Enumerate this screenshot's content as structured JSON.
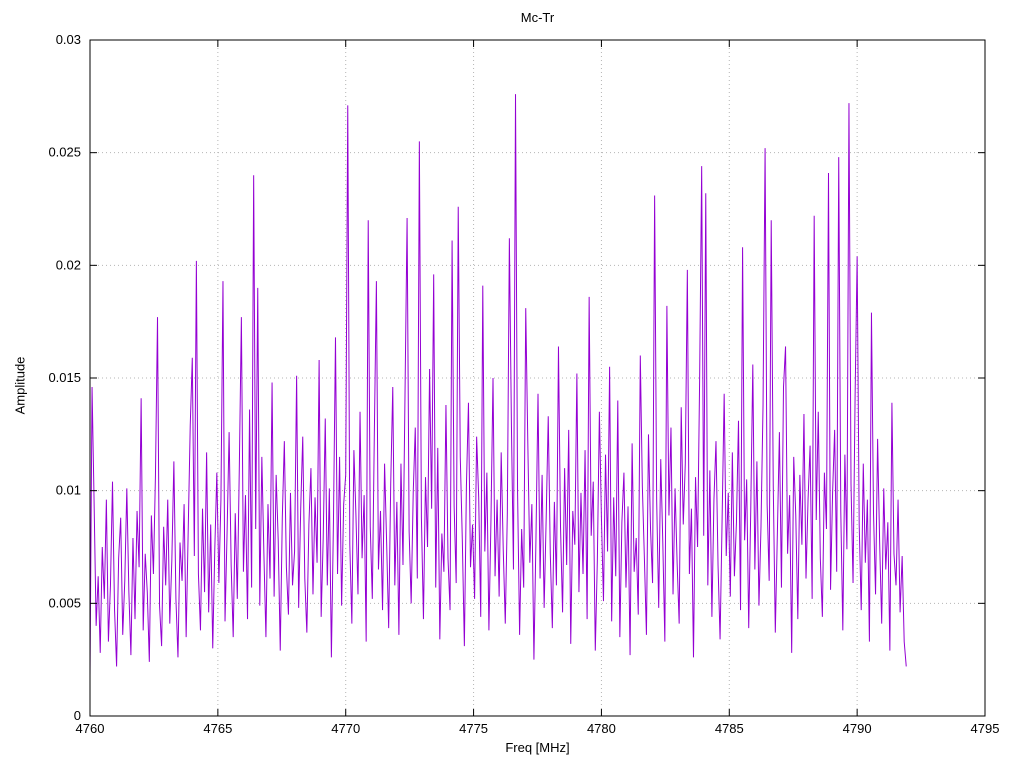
{
  "chart_data": {
    "type": "line",
    "title": "Mc-Tr",
    "xlabel": "Freq [MHz]",
    "ylabel": "Amplitude",
    "xlim": [
      4760,
      4795
    ],
    "ylim": [
      0,
      0.03
    ],
    "grid": true,
    "legend": "none",
    "line_color": "#9400d3",
    "grid_color": "#b5b5b5",
    "border_color": "#000000",
    "x_ticks": [
      4760,
      4765,
      4770,
      4775,
      4780,
      4785,
      4790,
      4795
    ],
    "x_tick_labels": [
      "4760",
      "4765",
      "4770",
      "4775",
      "4780",
      "4785",
      "4790",
      "4795"
    ],
    "y_ticks": [
      0,
      0.005,
      0.01,
      0.015,
      0.02,
      0.025,
      0.03
    ],
    "y_tick_labels": [
      "0",
      "0.005",
      "0.01",
      "0.015",
      "0.02",
      "0.025",
      "0.03"
    ],
    "series_x_start": 4760,
    "series_x_step": 0.08,
    "value_unit": 0.0001,
    "values": [
      18,
      146,
      95,
      40,
      62,
      28,
      75,
      52,
      96,
      33,
      58,
      104,
      47,
      22,
      70,
      88,
      36,
      60,
      101,
      55,
      27,
      79,
      43,
      91,
      66,
      141,
      38,
      72,
      55,
      24,
      89,
      63,
      107,
      177,
      49,
      31,
      84,
      58,
      96,
      41,
      69,
      113,
      52,
      26,
      77,
      60,
      94,
      35,
      82,
      129,
      159,
      71,
      202,
      63,
      38,
      92,
      55,
      117,
      46,
      85,
      30,
      74,
      108,
      59,
      96,
      193,
      42,
      81,
      126,
      67,
      35,
      90,
      52,
      111,
      177,
      64,
      98,
      43,
      136,
      57,
      240,
      83,
      190,
      49,
      115,
      72,
      35,
      94,
      61,
      148,
      53,
      107,
      78,
      29,
      88,
      122,
      66,
      45,
      99,
      58,
      73,
      151,
      48,
      92,
      124,
      61,
      37,
      85,
      110,
      54,
      97,
      68,
      158,
      44,
      79,
      132,
      58,
      101,
      26,
      86,
      168,
      63,
      115,
      49,
      94,
      107,
      271,
      76,
      41,
      118,
      89,
      54,
      135,
      70,
      98,
      33,
      220,
      84,
      52,
      126,
      193,
      65,
      91,
      47,
      112,
      77,
      39,
      103,
      146,
      58,
      95,
      36,
      112,
      67,
      144,
      221,
      82,
      50,
      99,
      128,
      61,
      255,
      88,
      43,
      106,
      75,
      154,
      92,
      196,
      57,
      119,
      34,
      81,
      64,
      138,
      70,
      47,
      211,
      93,
      59,
      226,
      115,
      78,
      31,
      102,
      139,
      66,
      85,
      52,
      124,
      97,
      44,
      191,
      73,
      108,
      38,
      87,
      150,
      62,
      96,
      53,
      117,
      74,
      41,
      90,
      212,
      129,
      65,
      276,
      100,
      36,
      83,
      57,
      181,
      122,
      68,
      94,
      25,
      79,
      143,
      61,
      107,
      48,
      88,
      133,
      72,
      39,
      95,
      58,
      164,
      84,
      46,
      110,
      67,
      127,
      32,
      91,
      76,
      152,
      55,
      99,
      63,
      118,
      43,
      186,
      80,
      104,
      29,
      69,
      135,
      88,
      51,
      116,
      73,
      155,
      42,
      97,
      62,
      140,
      35,
      86,
      108,
      57,
      93,
      27,
      121,
      64,
      79,
      45,
      160,
      102,
      70,
      36,
      125,
      83,
      59,
      231,
      96,
      48,
      114,
      77,
      33,
      182,
      89,
      128,
      54,
      101,
      68,
      41,
      137,
      85,
      112,
      198,
      63,
      92,
      26,
      106,
      75,
      149,
      244,
      80,
      232,
      58,
      109,
      44,
      96,
      122,
      67,
      34,
      88,
      143,
      71,
      99,
      53,
      117,
      62,
      86,
      131,
      47,
      208,
      78,
      105,
      39,
      92,
      156,
      65,
      113,
      49,
      84,
      138,
      252,
      94,
      60,
      220,
      102,
      37,
      81,
      126,
      57,
      146,
      164,
      72,
      98,
      28,
      115,
      89,
      43,
      107,
      76,
      134,
      61,
      96,
      120,
      52,
      222,
      87,
      135,
      70,
      44,
      108,
      83,
      241,
      56,
      99,
      127,
      64,
      248,
      91,
      38,
      116,
      74,
      272,
      103,
      59,
      142,
      204,
      85,
      47,
      112,
      68,
      96,
      33,
      179,
      90,
      54,
      123,
      77,
      41,
      101,
      65,
      86,
      29,
      139,
      72,
      58,
      96,
      46,
      71,
      33,
      22
    ]
  }
}
